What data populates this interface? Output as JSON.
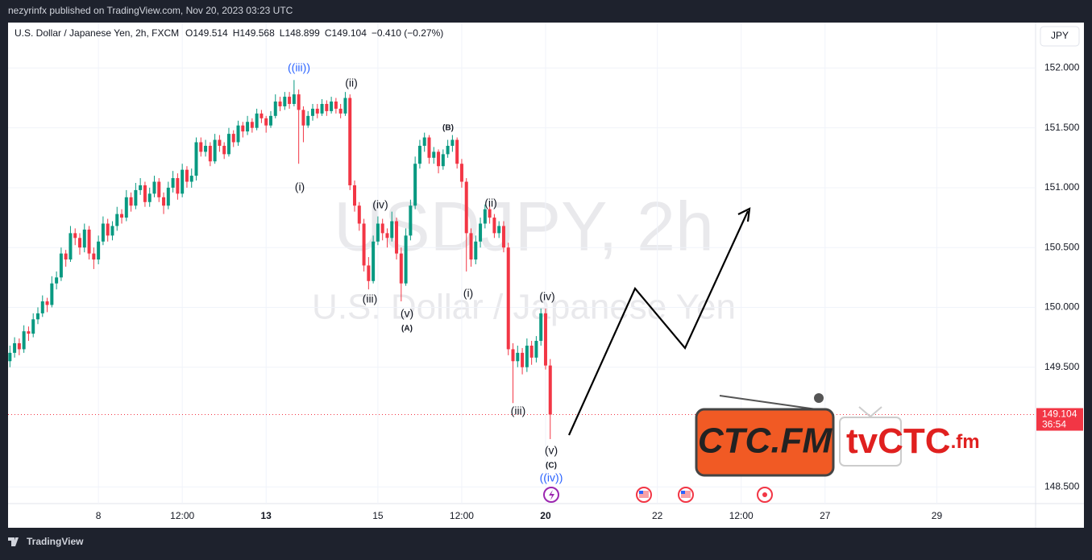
{
  "header": {
    "published": "nezyrinfx published on TradingView.com, Nov 20, 2023 03:23 UTC",
    "footer": "TradingView",
    "currency_button": "JPY"
  },
  "chart_data": {
    "type": "candlestick",
    "symbol": "U.S. Dollar / Japanese Yen, 2h, FXCM",
    "legend": [
      "O149.514",
      "H149.568",
      "L148.899",
      "C149.104",
      "−0.410 (−0.27%)"
    ],
    "watermark": "USDJPY, 2h",
    "watermark_subtitle": "U.S. Dollar / Japanese Yen",
    "countdown": "36:54",
    "up_color": "#089981",
    "down_color": "#f23645",
    "x": [
      -19,
      -18,
      -17,
      -16,
      -15,
      -14,
      -13,
      -12,
      -11,
      -10,
      -9,
      -8,
      -7,
      -6,
      -5,
      -4,
      -3,
      -2,
      -1,
      0,
      1,
      2,
      3,
      4,
      5,
      6,
      7,
      8,
      9,
      10,
      11,
      12,
      13,
      14,
      15,
      16,
      17,
      18,
      19,
      20,
      21,
      22,
      23,
      24,
      25,
      26,
      27,
      28,
      29,
      30,
      31,
      32,
      33,
      34,
      35,
      36,
      37,
      38,
      39,
      40,
      41,
      42,
      43,
      44,
      45,
      46,
      47,
      48,
      49,
      50,
      51,
      52,
      53,
      54,
      55,
      56,
      57,
      58,
      59,
      60,
      61,
      62,
      63,
      64,
      65,
      66,
      67,
      68,
      69,
      70,
      71,
      72,
      73,
      74,
      75,
      76,
      77,
      78,
      79,
      80,
      81,
      82,
      83,
      84,
      85,
      86,
      87,
      88,
      89,
      90,
      91,
      92,
      93,
      94,
      95,
      96,
      97
    ],
    "candles": [
      [
        149.55,
        149.68,
        149.5,
        149.62
      ],
      [
        149.62,
        149.75,
        149.58,
        149.7
      ],
      [
        149.7,
        149.74,
        149.6,
        149.65
      ],
      [
        149.65,
        149.85,
        149.62,
        149.8
      ],
      [
        149.8,
        149.84,
        149.72,
        149.78
      ],
      [
        149.78,
        149.95,
        149.75,
        149.9
      ],
      [
        149.9,
        150.0,
        149.86,
        149.95
      ],
      [
        149.95,
        150.1,
        149.92,
        150.05
      ],
      [
        150.05,
        150.08,
        149.96,
        150.02
      ],
      [
        150.02,
        150.26,
        150.0,
        150.2
      ],
      [
        150.2,
        150.3,
        150.15,
        150.25
      ],
      [
        150.25,
        150.5,
        150.22,
        150.45
      ],
      [
        150.45,
        150.48,
        150.34,
        150.4
      ],
      [
        150.4,
        150.68,
        150.38,
        150.62
      ],
      [
        150.62,
        150.66,
        150.52,
        150.58
      ],
      [
        150.58,
        150.62,
        150.44,
        150.5
      ],
      [
        150.5,
        150.7,
        150.46,
        150.65
      ],
      [
        150.65,
        150.68,
        150.4,
        150.45
      ],
      [
        150.45,
        150.5,
        150.32,
        150.4
      ],
      [
        150.4,
        150.6,
        150.36,
        150.55
      ],
      [
        150.55,
        150.76,
        150.52,
        150.7
      ],
      [
        150.7,
        150.74,
        150.55,
        150.6
      ],
      [
        150.6,
        150.72,
        150.56,
        150.68
      ],
      [
        150.68,
        150.84,
        150.64,
        150.78
      ],
      [
        150.78,
        150.82,
        150.7,
        150.75
      ],
      [
        150.75,
        150.98,
        150.72,
        150.92
      ],
      [
        150.92,
        150.96,
        150.8,
        150.85
      ],
      [
        150.85,
        151.04,
        150.82,
        150.98
      ],
      [
        150.98,
        151.08,
        150.94,
        151.02
      ],
      [
        151.02,
        151.05,
        150.84,
        150.88
      ],
      [
        150.88,
        151.0,
        150.84,
        150.95
      ],
      [
        150.95,
        151.1,
        150.92,
        151.05
      ],
      [
        151.05,
        151.08,
        150.88,
        150.92
      ],
      [
        150.92,
        150.96,
        150.78,
        150.85
      ],
      [
        150.85,
        151.05,
        150.82,
        151.0
      ],
      [
        151.0,
        151.14,
        150.96,
        151.08
      ],
      [
        151.08,
        151.12,
        150.9,
        150.95
      ],
      [
        150.95,
        151.2,
        150.92,
        151.15
      ],
      [
        151.15,
        151.18,
        151.0,
        151.05
      ],
      [
        151.05,
        151.16,
        151.0,
        151.1
      ],
      [
        151.1,
        151.42,
        151.06,
        151.38
      ],
      [
        151.38,
        151.42,
        151.26,
        151.3
      ],
      [
        151.3,
        151.4,
        151.26,
        151.35
      ],
      [
        151.35,
        151.38,
        151.18,
        151.22
      ],
      [
        151.22,
        151.45,
        151.2,
        151.4
      ],
      [
        151.4,
        151.44,
        151.3,
        151.35
      ],
      [
        151.35,
        151.38,
        151.24,
        151.28
      ],
      [
        151.28,
        151.5,
        151.26,
        151.45
      ],
      [
        151.45,
        151.48,
        151.34,
        151.38
      ],
      [
        151.38,
        151.56,
        151.35,
        151.52
      ],
      [
        151.52,
        151.55,
        151.42,
        151.47
      ],
      [
        151.47,
        151.6,
        151.44,
        151.55
      ],
      [
        151.55,
        151.58,
        151.46,
        151.5
      ],
      [
        151.5,
        151.66,
        151.48,
        151.62
      ],
      [
        151.62,
        151.65,
        151.54,
        151.58
      ],
      [
        151.58,
        151.6,
        151.46,
        151.52
      ],
      [
        151.52,
        151.64,
        151.5,
        151.6
      ],
      [
        151.6,
        151.78,
        151.58,
        151.72
      ],
      [
        151.72,
        151.76,
        151.64,
        151.68
      ],
      [
        151.68,
        151.8,
        151.65,
        151.76
      ],
      [
        151.76,
        151.8,
        151.66,
        151.7
      ],
      [
        151.7,
        151.9,
        151.68,
        151.78
      ],
      [
        151.78,
        151.82,
        151.2,
        151.65
      ],
      [
        151.65,
        151.68,
        151.38,
        151.52
      ],
      [
        151.52,
        151.64,
        151.5,
        151.6
      ],
      [
        151.6,
        151.7,
        151.56,
        151.66
      ],
      [
        151.66,
        151.7,
        151.58,
        151.62
      ],
      [
        151.62,
        151.74,
        151.6,
        151.7
      ],
      [
        151.7,
        151.73,
        151.6,
        151.64
      ],
      [
        151.64,
        151.76,
        151.62,
        151.72
      ],
      [
        151.72,
        151.75,
        151.62,
        151.66
      ],
      [
        151.66,
        151.7,
        151.58,
        151.62
      ],
      [
        151.62,
        151.8,
        151.6,
        151.75
      ],
      [
        151.75,
        151.78,
        150.98,
        151.02
      ],
      [
        151.02,
        151.06,
        150.8,
        150.85
      ],
      [
        150.85,
        150.88,
        150.64,
        150.7
      ],
      [
        150.7,
        150.74,
        150.3,
        150.35
      ],
      [
        150.35,
        150.42,
        150.15,
        150.22
      ],
      [
        150.22,
        150.6,
        150.2,
        150.55
      ],
      [
        150.55,
        150.76,
        150.52,
        150.7
      ],
      [
        150.7,
        150.74,
        150.56,
        150.62
      ],
      [
        150.62,
        150.66,
        150.5,
        150.58
      ],
      [
        150.58,
        150.8,
        150.55,
        150.72
      ],
      [
        150.72,
        150.75,
        150.4,
        150.45
      ],
      [
        150.45,
        150.5,
        150.05,
        150.2
      ],
      [
        150.2,
        150.66,
        150.18,
        150.6
      ],
      [
        150.6,
        150.9,
        150.56,
        150.85
      ],
      [
        150.85,
        151.26,
        150.82,
        151.2
      ],
      [
        151.2,
        151.4,
        151.16,
        151.35
      ],
      [
        151.35,
        151.46,
        151.3,
        151.42
      ],
      [
        151.42,
        151.44,
        151.2,
        151.25
      ],
      [
        151.25,
        151.34,
        151.2,
        151.3
      ],
      [
        151.3,
        151.32,
        151.12,
        151.18
      ],
      [
        151.18,
        151.32,
        151.15,
        151.28
      ],
      [
        151.28,
        151.4,
        151.25,
        151.35
      ],
      [
        151.35,
        151.44,
        151.3,
        151.4
      ],
      [
        151.4,
        151.42,
        151.16,
        151.2
      ],
      [
        151.2,
        151.24,
        151.0,
        151.05
      ],
      [
        151.05,
        151.08,
        150.3,
        150.62
      ],
      [
        150.62,
        150.66,
        150.34,
        150.4
      ],
      [
        150.4,
        150.6,
        150.36,
        150.55
      ],
      [
        150.55,
        150.75,
        150.5,
        150.7
      ],
      [
        150.7,
        150.86,
        150.66,
        150.82
      ],
      [
        150.82,
        150.85,
        150.7,
        150.75
      ],
      [
        150.75,
        150.78,
        150.58,
        150.62
      ],
      [
        150.62,
        150.72,
        150.58,
        150.68
      ],
      [
        150.68,
        150.72,
        150.46,
        150.5
      ],
      [
        150.5,
        150.54,
        149.6,
        149.65
      ],
      [
        149.65,
        149.7,
        149.2,
        149.55
      ],
      [
        149.55,
        149.68,
        149.5,
        149.62
      ],
      [
        149.62,
        149.66,
        149.44,
        149.5
      ],
      [
        149.5,
        149.74,
        149.46,
        149.68
      ],
      [
        149.68,
        149.72,
        149.52,
        149.58
      ],
      [
        149.58,
        149.76,
        149.54,
        149.72
      ],
      [
        149.72,
        149.99,
        149.68,
        149.95
      ],
      [
        149.95,
        149.99,
        149.48,
        149.514
      ],
      [
        149.514,
        149.568,
        148.899,
        149.104
      ]
    ],
    "xlim": [
      -19.4,
      201.2
    ],
    "xticks": [
      {
        "value": 0,
        "label": "8"
      },
      {
        "value": 18,
        "label": "12:00"
      },
      {
        "value": 36,
        "label": "13"
      },
      {
        "value": 60,
        "label": "15"
      },
      {
        "value": 78,
        "label": "12:00"
      },
      {
        "value": 96,
        "label": "20"
      },
      {
        "value": 120,
        "label": "22"
      },
      {
        "value": 138,
        "label": "12:00"
      },
      {
        "value": 156,
        "label": "27"
      },
      {
        "value": 180,
        "label": "29"
      }
    ],
    "ylim": [
      148.36,
      152.38
    ],
    "yticks": [
      {
        "value": 148.5,
        "label": "148.500"
      },
      {
        "value": 149.5,
        "label": "149.500"
      },
      {
        "value": 150,
        "label": "150.000"
      },
      {
        "value": 150.5,
        "label": "150.500"
      },
      {
        "value": 151,
        "label": "151.000"
      },
      {
        "value": 151.5,
        "label": "151.500"
      },
      {
        "value": 152,
        "label": "152.000"
      }
    ],
    "grid": true,
    "annotations": [
      "((iii))",
      "(ii)",
      "(i)",
      "(iv)",
      "(iii)",
      "(v)",
      "(A)",
      "(B)",
      "(ii)",
      "(i)",
      "(iii)",
      "(iv)",
      "(v)",
      "(C)",
      "((iv))"
    ],
    "logo_left": "CTC.FM",
    "logo_right_a": "tvCTC",
    "logo_right_b": ".fm"
  }
}
